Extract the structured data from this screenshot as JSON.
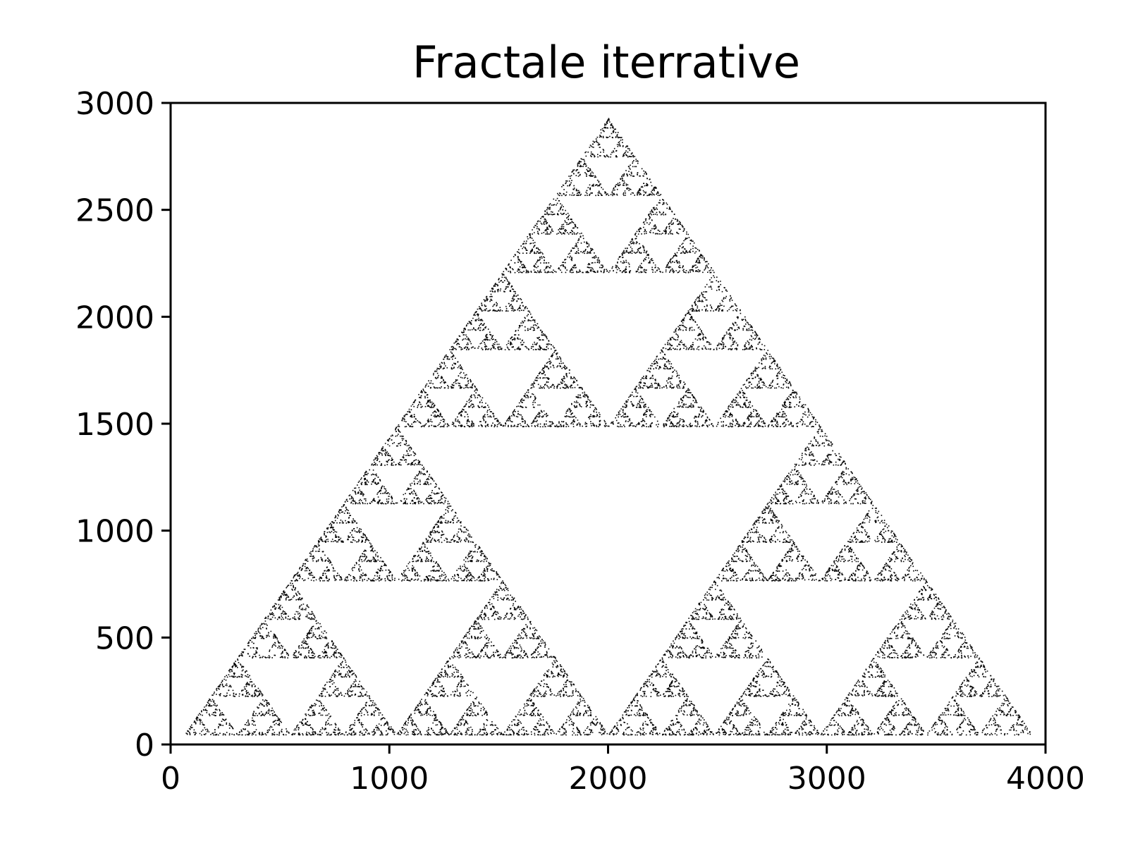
{
  "chart_data": {
    "type": "scatter",
    "title": "Fractale iterrative",
    "xlabel": "",
    "ylabel": "",
    "xlim": [
      0,
      4000
    ],
    "ylim": [
      0,
      3000
    ],
    "x_ticks": [
      0,
      1000,
      2000,
      3000,
      4000
    ],
    "y_ticks": [
      0,
      500,
      1000,
      1500,
      2000,
      2500,
      3000
    ],
    "grid": false,
    "legend": "none",
    "series": [
      {
        "pattern": "sierpinski-triangle",
        "vertices": [
          [
            62,
            47
          ],
          [
            2000,
            2930
          ],
          [
            3938,
            47
          ]
        ],
        "color": "#000000"
      }
    ]
  }
}
